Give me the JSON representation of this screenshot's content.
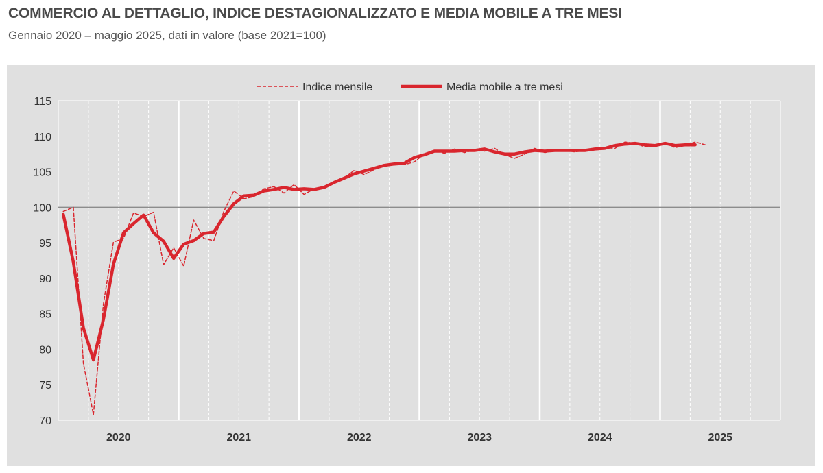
{
  "header": {
    "title": "COMMERCIO AL DETTAGLIO, INDICE DESTAGIONALIZZATO E MEDIA MOBILE A TRE MESI",
    "subtitle": "Gennaio 2020 – maggio 2025, dati in valore (base 2021=100)"
  },
  "colors": {
    "panel_bg": "#e0e0e0",
    "series": "#d9262e",
    "grid_major": "#ffffff",
    "grid_minor": "#ffffff",
    "reference_line": "#8c8c8c",
    "text": "#333333"
  },
  "chart_data": {
    "type": "line",
    "title": "",
    "xlabel": "",
    "ylabel": "",
    "ylim": [
      70,
      115
    ],
    "yticks": [
      "70",
      "75",
      "80",
      "85",
      "90",
      "95",
      "100",
      "105",
      "110",
      "115"
    ],
    "x_range": [
      "2020-01",
      "2025-12"
    ],
    "x_categories": [
      "2020",
      "2021",
      "2022",
      "2023",
      "2024",
      "2025"
    ],
    "reference_line": 100,
    "grid": true,
    "legend_position": "top-center",
    "series": [
      {
        "name": "Indice mensile",
        "style": "dashed",
        "x": [
          "2020-01",
          "2020-02",
          "2020-03",
          "2020-04",
          "2020-05",
          "2020-06",
          "2020-07",
          "2020-08",
          "2020-09",
          "2020-10",
          "2020-11",
          "2020-12",
          "2021-01",
          "2021-02",
          "2021-03",
          "2021-04",
          "2021-05",
          "2021-06",
          "2021-07",
          "2021-08",
          "2021-09",
          "2021-10",
          "2021-11",
          "2021-12",
          "2022-01",
          "2022-02",
          "2022-03",
          "2022-04",
          "2022-05",
          "2022-06",
          "2022-07",
          "2022-08",
          "2022-09",
          "2022-10",
          "2022-11",
          "2022-12",
          "2023-01",
          "2023-02",
          "2023-03",
          "2023-04",
          "2023-05",
          "2023-06",
          "2023-07",
          "2023-08",
          "2023-09",
          "2023-10",
          "2023-11",
          "2023-12",
          "2024-01",
          "2024-02",
          "2024-03",
          "2024-04",
          "2024-05",
          "2024-06",
          "2024-07",
          "2024-08",
          "2024-09",
          "2024-10",
          "2024-11",
          "2024-12",
          "2025-01",
          "2025-02",
          "2025-03",
          "2025-04",
          "2025-05"
        ],
        "values": [
          99.4,
          100.0,
          78.0,
          70.8,
          86.4,
          95.1,
          95.6,
          99.2,
          98.7,
          99.3,
          91.9,
          94.3,
          91.7,
          98.2,
          95.6,
          95.3,
          99.4,
          102.3,
          101.2,
          101.5,
          102.6,
          102.9,
          102.0,
          103.2,
          101.8,
          102.6,
          102.7,
          103.4,
          104.1,
          105.2,
          104.6,
          105.3,
          105.9,
          106.1,
          106.0,
          106.4,
          107.5,
          108.0,
          107.6,
          108.2,
          107.7,
          108.1,
          107.9,
          108.3,
          107.4,
          106.9,
          107.5,
          108.3,
          107.7,
          108.0,
          108.0,
          107.8,
          108.0,
          108.1,
          108.4,
          108.3,
          109.2,
          109.0,
          108.5,
          108.8,
          109.1,
          108.4,
          108.7,
          109.2,
          108.8
        ]
      },
      {
        "name": "Media mobile a tre mesi",
        "style": "solid",
        "x": [
          "2020-01",
          "2020-02",
          "2020-03",
          "2020-04",
          "2020-05",
          "2020-06",
          "2020-07",
          "2020-08",
          "2020-09",
          "2020-10",
          "2020-11",
          "2020-12",
          "2021-01",
          "2021-02",
          "2021-03",
          "2021-04",
          "2021-05",
          "2021-06",
          "2021-07",
          "2021-08",
          "2021-09",
          "2021-10",
          "2021-11",
          "2021-12",
          "2022-01",
          "2022-02",
          "2022-03",
          "2022-04",
          "2022-05",
          "2022-06",
          "2022-07",
          "2022-08",
          "2022-09",
          "2022-10",
          "2022-11",
          "2022-12",
          "2023-01",
          "2023-02",
          "2023-03",
          "2023-04",
          "2023-05",
          "2023-06",
          "2023-07",
          "2023-08",
          "2023-09",
          "2023-10",
          "2023-11",
          "2023-12",
          "2024-01",
          "2024-02",
          "2024-03",
          "2024-04",
          "2024-05",
          "2024-06",
          "2024-07",
          "2024-08",
          "2024-09",
          "2024-10",
          "2024-11",
          "2024-12",
          "2025-01",
          "2025-02",
          "2025-03",
          "2025-04"
        ],
        "values": [
          99.0,
          92.3,
          83.0,
          78.5,
          84.2,
          92.0,
          96.4,
          97.7,
          98.9,
          96.4,
          95.2,
          92.8,
          94.8,
          95.3,
          96.3,
          96.5,
          98.7,
          100.5,
          101.6,
          101.7,
          102.3,
          102.5,
          102.8,
          102.5,
          102.6,
          102.5,
          102.8,
          103.5,
          104.1,
          104.7,
          105.1,
          105.5,
          105.9,
          106.1,
          106.2,
          107.0,
          107.4,
          107.9,
          107.9,
          107.9,
          108.0,
          108.0,
          108.2,
          107.8,
          107.5,
          107.5,
          107.8,
          108.0,
          107.9,
          108.0,
          108.0,
          108.0,
          108.0,
          108.2,
          108.3,
          108.7,
          108.9,
          109.0,
          108.8,
          108.7,
          109.0,
          108.7,
          108.8,
          108.8
        ]
      }
    ]
  }
}
